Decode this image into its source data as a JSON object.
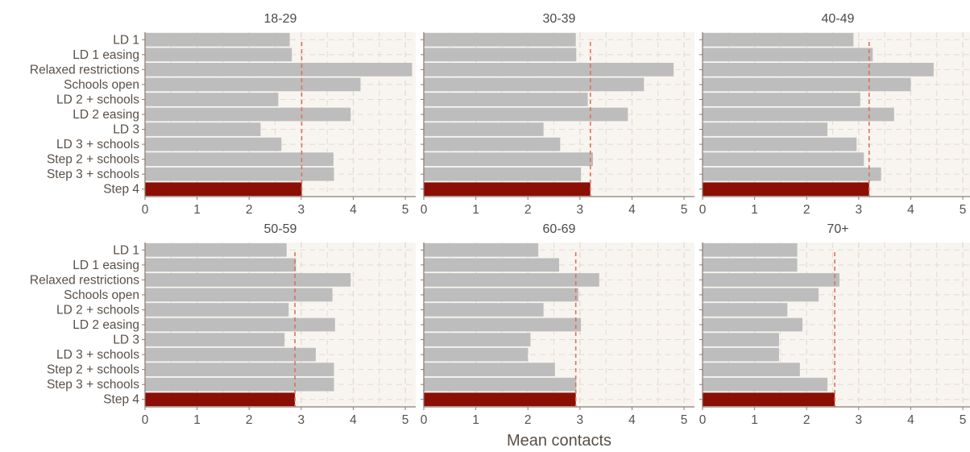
{
  "chart_data": {
    "type": "bar",
    "orientation": "horizontal",
    "xlabel": "Mean contacts",
    "ylabel": "",
    "xlim": [
      0,
      5.2
    ],
    "xticks": [
      "0",
      "1",
      "2",
      "3",
      "4",
      "5"
    ],
    "grid": true,
    "colors": {
      "bar": "#bdbdbd",
      "highlight": "#8b0f04",
      "reference_line": "#e0705a",
      "panel_bg": "#f8f5f0",
      "grid": "#e3dbd2",
      "axis": "#8a7d72",
      "text": "#5a5048"
    },
    "categories": [
      "LD 1",
      "LD 1 easing",
      "Relaxed restrictions",
      "Schools open",
      "LD 2 + schools",
      "LD 2 easing",
      "LD 3",
      "LD 3 + schools",
      "Step 2 + schools",
      "Step 3 + schools",
      "Step 4"
    ],
    "highlight_category": "Step 4",
    "reference_line": "Step 4 value (dashed)",
    "panels": [
      {
        "title": "18-29",
        "values": [
          2.78,
          2.82,
          5.13,
          4.14,
          2.56,
          3.95,
          2.22,
          2.62,
          3.62,
          3.63,
          3.01
        ]
      },
      {
        "title": "30-39",
        "values": [
          2.92,
          2.93,
          4.8,
          4.23,
          3.15,
          3.92,
          2.3,
          2.62,
          3.25,
          3.02,
          3.2
        ]
      },
      {
        "title": "40-49",
        "values": [
          2.9,
          3.27,
          4.44,
          4.0,
          3.03,
          3.68,
          2.4,
          2.96,
          3.1,
          3.43,
          3.2
        ]
      },
      {
        "title": "50-59",
        "values": [
          2.72,
          2.9,
          3.95,
          3.6,
          2.76,
          3.65,
          2.68,
          3.28,
          3.63,
          3.63,
          2.88
        ]
      },
      {
        "title": "60-69",
        "values": [
          2.2,
          2.6,
          3.37,
          2.97,
          2.3,
          3.02,
          2.05,
          2.0,
          2.52,
          2.93,
          2.92
        ]
      },
      {
        "title": "70+",
        "values": [
          1.82,
          1.82,
          2.63,
          2.23,
          1.63,
          1.92,
          1.47,
          1.47,
          1.87,
          2.4,
          2.54
        ]
      }
    ]
  }
}
